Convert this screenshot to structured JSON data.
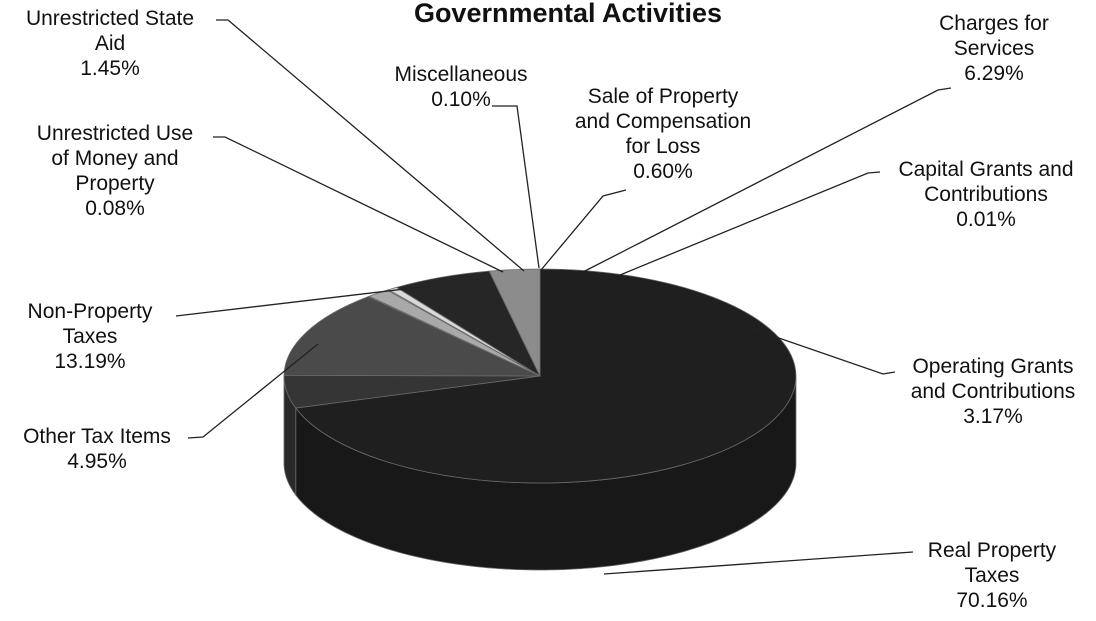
{
  "chart_data": {
    "type": "pie",
    "title": "Governmental Activities",
    "slices": [
      {
        "label_lines": [
          "Real Property",
          "Taxes"
        ],
        "pct": "70.16%",
        "value": 70.16,
        "color": "#1f1f1f"
      },
      {
        "label_lines": [
          "Other Tax Items"
        ],
        "pct": "4.95%",
        "value": 4.95,
        "color": "#353535"
      },
      {
        "label_lines": [
          "Non-Property",
          "Taxes"
        ],
        "pct": "13.19%",
        "value": 13.19,
        "color": "#4a4a4a"
      },
      {
        "label_lines": [
          "Unrestricted Use",
          "of Money and",
          "Property"
        ],
        "pct": "0.08%",
        "value": 0.08,
        "color": "#c8c8c8"
      },
      {
        "label_lines": [
          "Unrestricted State",
          "Aid"
        ],
        "pct": "1.45%",
        "value": 1.45,
        "color": "#a9a9a9"
      },
      {
        "label_lines": [
          "Miscellaneous"
        ],
        "pct": "0.10%",
        "value": 0.1,
        "color": "#e6e6e6"
      },
      {
        "label_lines": [
          "Sale of Property",
          "and Compensation",
          "for Loss"
        ],
        "pct": "0.60%",
        "value": 0.6,
        "color": "#d9d9d9"
      },
      {
        "label_lines": [
          "Charges for",
          "Services"
        ],
        "pct": "6.29%",
        "value": 6.29,
        "color": "#262626"
      },
      {
        "label_lines": [
          "Capital Grants and",
          "Contributions"
        ],
        "pct": "0.01%",
        "value": 0.01,
        "color": "#3a3a3a"
      },
      {
        "label_lines": [
          "Operating Grants",
          "and Contributions"
        ],
        "pct": "3.17%",
        "value": 3.17,
        "color": "#8c8c8c"
      }
    ]
  }
}
